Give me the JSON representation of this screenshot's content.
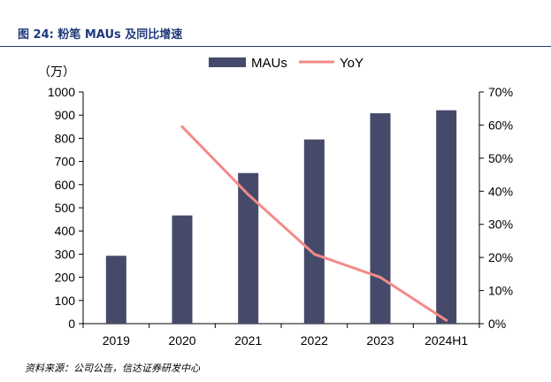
{
  "figure": {
    "title": "图 24: 粉笔 MAUs 及同比增速",
    "source": "资料来源：公司公告，信达证券研发中心"
  },
  "colors": {
    "bar": "#454a6b",
    "line": "#f28a88"
  },
  "chart_data": {
    "type": "bar",
    "categories": [
      "2019",
      "2020",
      "2021",
      "2022",
      "2023",
      "2024H1"
    ],
    "series": [
      {
        "name": "MAUs",
        "type": "bar",
        "axis": "left",
        "values": [
          293,
          467,
          650,
          795,
          908,
          921
        ]
      },
      {
        "name": "YoY",
        "type": "line",
        "axis": "right",
        "values": [
          null,
          0.595,
          0.39,
          0.21,
          0.14,
          0.01
        ]
      }
    ],
    "left_axis": {
      "unit_label": "（万）",
      "ylim": [
        0,
        1000
      ],
      "ticks": [
        0,
        100,
        200,
        300,
        400,
        500,
        600,
        700,
        800,
        900,
        1000
      ]
    },
    "right_axis": {
      "ylim": [
        0,
        0.7
      ],
      "ticks": [
        "0%",
        "10%",
        "20%",
        "30%",
        "40%",
        "50%",
        "60%",
        "70%"
      ]
    },
    "grid": false,
    "legend": "top"
  }
}
